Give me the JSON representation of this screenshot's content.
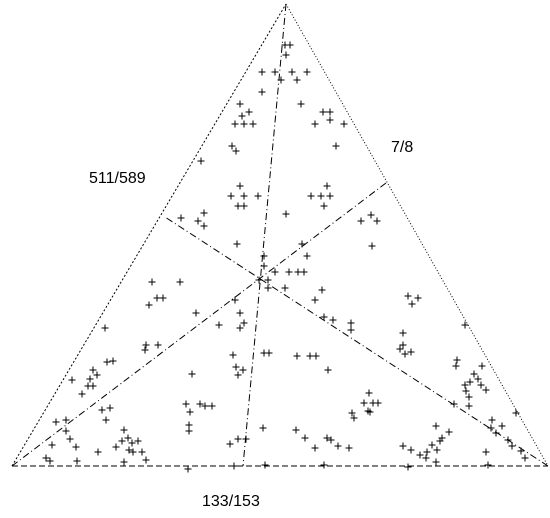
{
  "labels": {
    "left_side": "511/589",
    "right_side": "7/8",
    "bottom_side": "133/153"
  },
  "colors": {
    "stroke": "#000000",
    "background": "#ffffff"
  },
  "marker_symbol": "+"
}
